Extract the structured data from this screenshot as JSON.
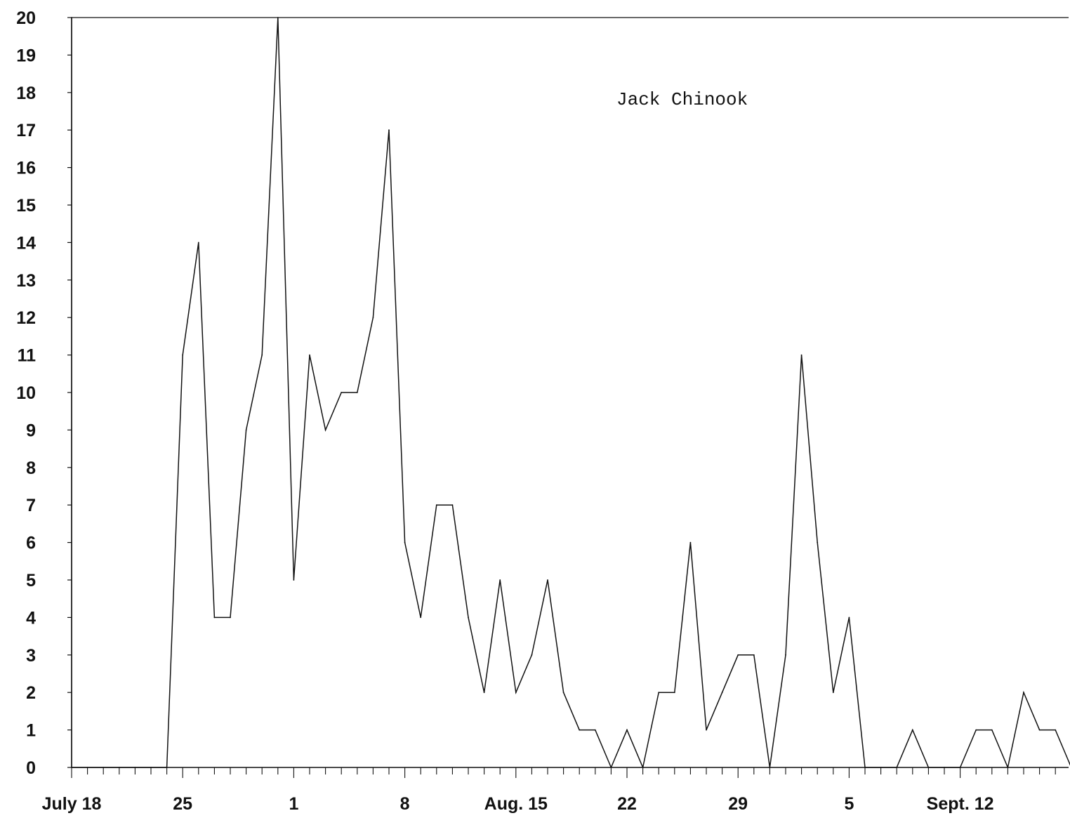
{
  "chart_data": {
    "type": "line",
    "title": "",
    "xlabel": "",
    "ylabel": "",
    "annotation": "Jack Chinook",
    "ylim": [
      0,
      20
    ],
    "y_ticks": [
      0,
      1,
      2,
      3,
      4,
      5,
      6,
      7,
      8,
      9,
      10,
      11,
      12,
      13,
      14,
      15,
      16,
      17,
      18,
      19,
      20
    ],
    "xlim": [
      "July 18",
      "Sept. 19"
    ],
    "x_tick_labels": [
      {
        "date": "July 18",
        "label": "July 18"
      },
      {
        "date": "July 25",
        "label": "25"
      },
      {
        "date": "Aug. 1",
        "label": "1"
      },
      {
        "date": "Aug. 8",
        "label": "8"
      },
      {
        "date": "Aug. 15",
        "label": "Aug. 15"
      },
      {
        "date": "Aug. 22",
        "label": "22"
      },
      {
        "date": "Aug. 29",
        "label": "29"
      },
      {
        "date": "Sept. 5",
        "label": "5"
      },
      {
        "date": "Sept. 12",
        "label": "Sept. 12"
      }
    ],
    "grid": false,
    "series": [
      {
        "color": "#111111",
        "points": [
          {
            "x": "July 18",
            "y": 20
          },
          {
            "x": "July 18",
            "y": 0
          },
          {
            "x": "July 19",
            "y": 0
          },
          {
            "x": "July 20",
            "y": 0
          },
          {
            "x": "July 21",
            "y": 0
          },
          {
            "x": "July 22",
            "y": 0
          },
          {
            "x": "July 23",
            "y": 0
          },
          {
            "x": "July 24",
            "y": 0
          },
          {
            "x": "July 25",
            "y": 11
          },
          {
            "x": "July 26",
            "y": 14
          },
          {
            "x": "July 27",
            "y": 4
          },
          {
            "x": "July 28",
            "y": 4
          },
          {
            "x": "July 29",
            "y": 9
          },
          {
            "x": "July 30",
            "y": 11
          },
          {
            "x": "July 31",
            "y": 20
          },
          {
            "x": "Aug. 1",
            "y": 5
          },
          {
            "x": "Aug. 2",
            "y": 11
          },
          {
            "x": "Aug. 3",
            "y": 9
          },
          {
            "x": "Aug. 4",
            "y": 10
          },
          {
            "x": "Aug. 5",
            "y": 10
          },
          {
            "x": "Aug. 6",
            "y": 12
          },
          {
            "x": "Aug. 7",
            "y": 17
          },
          {
            "x": "Aug. 8",
            "y": 6
          },
          {
            "x": "Aug. 9",
            "y": 4
          },
          {
            "x": "Aug. 10",
            "y": 7
          },
          {
            "x": "Aug. 11",
            "y": 7
          },
          {
            "x": "Aug. 12",
            "y": 4
          },
          {
            "x": "Aug. 13",
            "y": 2
          },
          {
            "x": "Aug. 14",
            "y": 5
          },
          {
            "x": "Aug. 15",
            "y": 2
          },
          {
            "x": "Aug. 16",
            "y": 3
          },
          {
            "x": "Aug. 17",
            "y": 5
          },
          {
            "x": "Aug. 18",
            "y": 2
          },
          {
            "x": "Aug. 19",
            "y": 1
          },
          {
            "x": "Aug. 20",
            "y": 1
          },
          {
            "x": "Aug. 21",
            "y": 0
          },
          {
            "x": "Aug. 22",
            "y": 1
          },
          {
            "x": "Aug. 23",
            "y": 0
          },
          {
            "x": "Aug. 24",
            "y": 2
          },
          {
            "x": "Aug. 25",
            "y": 2
          },
          {
            "x": "Aug. 26",
            "y": 6
          },
          {
            "x": "Aug. 27",
            "y": 1
          },
          {
            "x": "Aug. 28",
            "y": 2
          },
          {
            "x": "Aug. 29",
            "y": 3
          },
          {
            "x": "Aug. 30",
            "y": 3
          },
          {
            "x": "Aug. 31",
            "y": 0
          },
          {
            "x": "Sept. 1",
            "y": 3
          },
          {
            "x": "Sept. 2",
            "y": 11
          },
          {
            "x": "Sept. 3",
            "y": 6
          },
          {
            "x": "Sept. 4",
            "y": 2
          },
          {
            "x": "Sept. 5",
            "y": 4
          },
          {
            "x": "Sept. 6",
            "y": 0
          },
          {
            "x": "Sept. 7",
            "y": 0
          },
          {
            "x": "Sept. 8",
            "y": 0
          },
          {
            "x": "Sept. 9",
            "y": 1
          },
          {
            "x": "Sept. 10",
            "y": 0
          },
          {
            "x": "Sept. 11",
            "y": 0
          },
          {
            "x": "Sept. 12",
            "y": 0
          },
          {
            "x": "Sept. 13",
            "y": 1
          },
          {
            "x": "Sept. 14",
            "y": 1
          },
          {
            "x": "Sept. 15",
            "y": 0
          },
          {
            "x": "Sept. 16",
            "y": 2
          },
          {
            "x": "Sept. 17",
            "y": 1
          },
          {
            "x": "Sept. 18",
            "y": 1
          },
          {
            "x": "Sept. 19",
            "y": 0
          }
        ]
      }
    ]
  }
}
